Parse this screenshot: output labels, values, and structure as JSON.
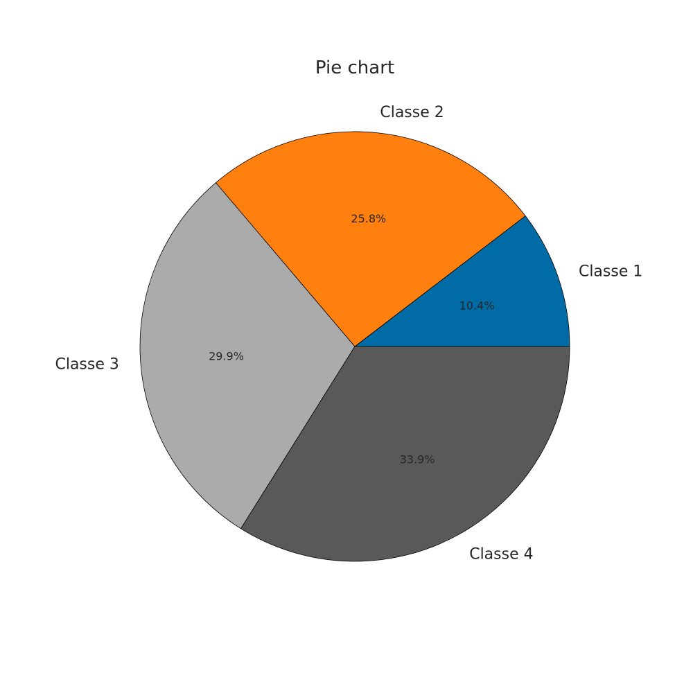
{
  "chart_data": {
    "type": "pie",
    "title": "Pie chart",
    "categories": [
      "Classe 1",
      "Classe 2",
      "Classe 3",
      "Classe 4"
    ],
    "values": [
      10.4,
      25.8,
      29.9,
      33.9
    ],
    "value_labels": [
      "10.4%",
      "25.8%",
      "29.9%",
      "33.9%"
    ],
    "colors": [
      "#006BA4",
      "#FF800E",
      "#ABABAB",
      "#595959"
    ],
    "edge_color": "#000000",
    "start_angle_deg": 0,
    "direction": "counterclockwise",
    "legend": "none"
  }
}
